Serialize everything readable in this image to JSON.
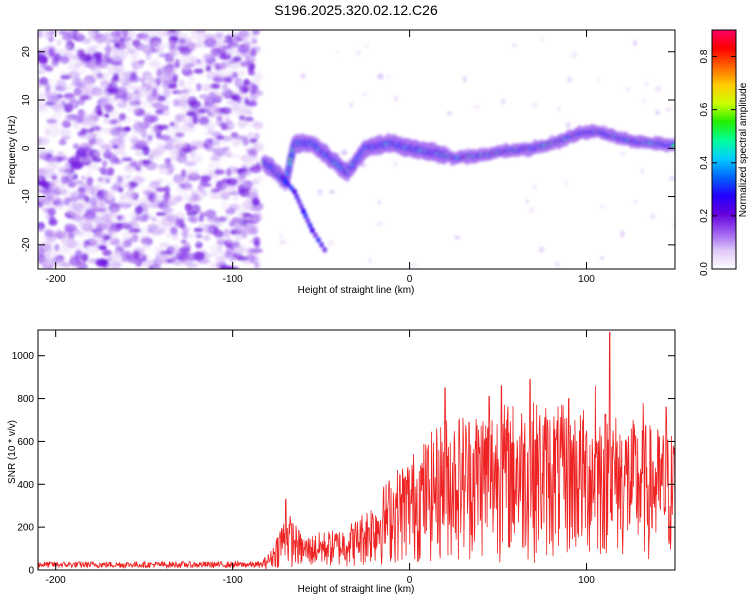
{
  "title": "S196.2025.320.02.12.C26",
  "chart_data": [
    {
      "type": "heatmap",
      "name": "spectrogram",
      "xlabel": "Height of straight line (km)",
      "ylabel": "Frequency (Hz)",
      "xlim": [
        -210,
        150
      ],
      "ylim": [
        -25,
        24.5
      ],
      "xticks": [
        -200,
        -100,
        0,
        100
      ],
      "yticks": [
        -20,
        -10,
        0,
        10,
        20
      ],
      "colorbar": {
        "label": "Normalized spectral amplitude",
        "range": [
          0,
          0.9
        ],
        "ticks": [
          0,
          0.2,
          0.4,
          0.6,
          0.8
        ],
        "colors": [
          "#ffffff",
          "#e0c8f8",
          "#9b5cf0",
          "#6600dd",
          "#2200ff",
          "#0066ff",
          "#00ccff",
          "#00ff99",
          "#22ee00",
          "#ccff00",
          "#ffcc00",
          "#ff6600",
          "#ff0000",
          "#ff0066"
        ]
      },
      "signal": {
        "noise_region_x": [
          -210,
          -85
        ],
        "ridge": [
          [
            -82,
            -3
          ],
          [
            -75,
            -5
          ],
          [
            -70,
            -7
          ],
          [
            -65,
            1
          ],
          [
            -55,
            1
          ],
          [
            -45,
            -2
          ],
          [
            -35,
            -5
          ],
          [
            -25,
            0
          ],
          [
            -10,
            1
          ],
          [
            0,
            0
          ],
          [
            15,
            -1
          ],
          [
            25,
            -2
          ],
          [
            40,
            -1.5
          ],
          [
            55,
            -0.5
          ],
          [
            70,
            0
          ],
          [
            85,
            1.5
          ],
          [
            95,
            3
          ],
          [
            105,
            3.5
          ],
          [
            115,
            2.5
          ],
          [
            125,
            1.5
          ],
          [
            135,
            1.2
          ],
          [
            150,
            0.5
          ]
        ],
        "branch": [
          [
            -72,
            -6
          ],
          [
            -65,
            -9
          ],
          [
            -60,
            -13
          ],
          [
            -55,
            -17
          ],
          [
            -48,
            -21
          ]
        ]
      }
    },
    {
      "type": "line",
      "name": "snr",
      "xlabel": "Height of straight line (km)",
      "ylabel": "SNR (10 * v/v)",
      "xlim": [
        -210,
        150
      ],
      "ylim": [
        0,
        1120
      ],
      "xticks": [
        -200,
        -100,
        0,
        100
      ],
      "yticks": [
        0,
        200,
        400,
        600,
        800,
        1000
      ],
      "color": "#ee2222",
      "envelope": [
        [
          -210,
          25
        ],
        [
          -85,
          25
        ],
        [
          -78,
          80
        ],
        [
          -72,
          200
        ],
        [
          -68,
          220
        ],
        [
          -60,
          130
        ],
        [
          -50,
          150
        ],
        [
          -40,
          160
        ],
        [
          -30,
          200
        ],
        [
          -20,
          280
        ],
        [
          -10,
          380
        ],
        [
          0,
          450
        ],
        [
          10,
          520
        ],
        [
          20,
          600
        ],
        [
          30,
          620
        ],
        [
          40,
          640
        ],
        [
          50,
          650
        ],
        [
          60,
          660
        ],
        [
          70,
          660
        ],
        [
          80,
          650
        ],
        [
          90,
          640
        ],
        [
          100,
          630
        ],
        [
          110,
          640
        ],
        [
          120,
          600
        ],
        [
          130,
          580
        ],
        [
          140,
          560
        ],
        [
          150,
          540
        ]
      ],
      "peaks": [
        [
          -70,
          330
        ],
        [
          20,
          850
        ],
        [
          45,
          810
        ],
        [
          52,
          860
        ],
        [
          68,
          890
        ],
        [
          90,
          800
        ],
        [
          105,
          860
        ],
        [
          113,
          1110
        ],
        [
          132,
          780
        ],
        [
          145,
          760
        ]
      ]
    }
  ]
}
